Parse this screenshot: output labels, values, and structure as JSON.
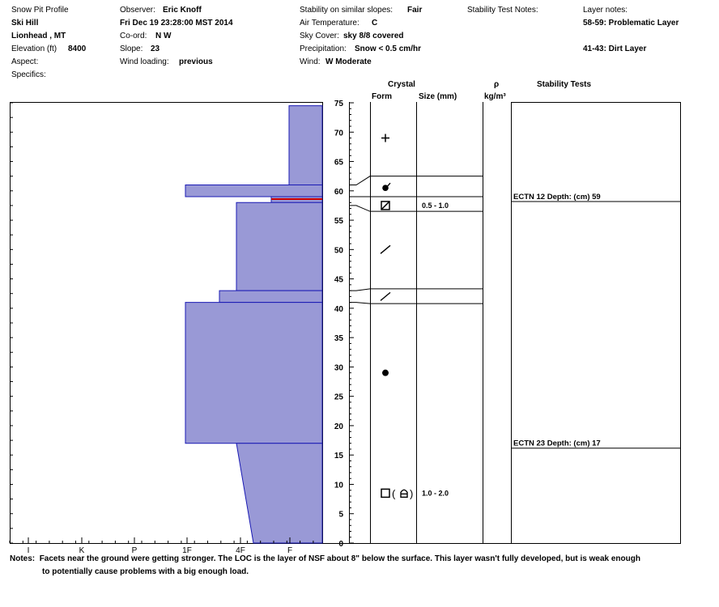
{
  "header": {
    "col1": {
      "title": "Snow Pit Profile",
      "location": "Ski Hill",
      "region": "Lionhead , MT",
      "elevation_label": "Elevation (ft)",
      "elevation_value": "8400",
      "aspect_label": "Aspect:",
      "specifics_label": "Specifics:"
    },
    "col2": {
      "observer_label": "Observer:",
      "observer_value": "Eric Knoff",
      "datetime": "Fri Dec 19 23:28:00 MST 2014",
      "coord_label": "Co-ord:",
      "coord_value": "N  W",
      "slope_label": "Slope:",
      "slope_value": "23",
      "wind_loading_label": "Wind loading:",
      "wind_loading_value": "previous"
    },
    "col3": {
      "stability_label": "Stability on similar slopes:",
      "stability_value": "Fair",
      "air_temp_label": "Air Temperature:",
      "air_temp_value": "C",
      "sky_label": "Sky Cover:",
      "sky_value": "sky 8/8 covered",
      "precip_label": "Precipitation:",
      "precip_value": "Snow < 0.5 cm/hr",
      "wind_label": "Wind:",
      "wind_value": "W Moderate"
    },
    "col4": {
      "stability_notes_label": "Stability Test Notes:"
    },
    "col5": {
      "layer_notes_label": "Layer notes:",
      "note1": "58-59: Problematic Layer",
      "note2": "41-43: Dirt Layer"
    }
  },
  "columns": {
    "crystal": "Crystal",
    "form": "Form",
    "size": "Size (mm)",
    "rho": "ρ",
    "density_unit": "kg/m³",
    "stability_tests": "Stability Tests"
  },
  "chart_data": {
    "type": "area",
    "description_axis": "hardness profile vs depth",
    "x_categories": [
      "I",
      "K",
      "P",
      "1F",
      "4F",
      "F"
    ],
    "y_ticks": [
      0,
      5,
      10,
      15,
      20,
      25,
      30,
      35,
      40,
      45,
      50,
      55,
      60,
      65,
      70,
      75
    ],
    "ylim": [
      0,
      75
    ],
    "fill_color": "#9999d6",
    "edge_color": "#1a1ab4",
    "marker_color": "#cc0000",
    "hardness_layers": [
      {
        "bottom": 61,
        "top": 74.5,
        "hardness": "F-"
      },
      {
        "bottom": 59,
        "top": 61,
        "hardness": "1F"
      },
      {
        "bottom": 58,
        "top": 59,
        "hardness": "F- (problematic layer marked)"
      },
      {
        "bottom": 43,
        "top": 58,
        "hardness": "4F"
      },
      {
        "bottom": 41,
        "top": 43,
        "hardness": "4F+"
      },
      {
        "bottom": 17,
        "top": 41,
        "hardness": "1F"
      },
      {
        "bottom": 0,
        "top": 17,
        "hardness": "4F to F (tapering)"
      }
    ],
    "crystal_layers": [
      {
        "depth": 69,
        "form": "+"
      },
      {
        "depth": 60.5,
        "form": "rounding decomposed"
      },
      {
        "depth": 57.5,
        "form": "faceted",
        "size": "0.5 - 1.0"
      },
      {
        "depth": 50,
        "form": "/"
      },
      {
        "depth": 42,
        "form": "/"
      },
      {
        "depth": 29,
        "form": "●"
      },
      {
        "depth": 8.5,
        "form": "depth hoar",
        "size": "1.0 - 2.0"
      }
    ],
    "stability_tests": [
      {
        "depth": 59,
        "label": "ECTN 12   Depth: (cm) 59"
      },
      {
        "depth": 17,
        "label": "ECTN 23   Depth: (cm) 17"
      }
    ]
  },
  "notes": {
    "label": "Notes:",
    "line1": "Facets near the ground were getting stronger. The LOC is the layer of NSF about 8\" below the surface. This layer wasn't fully developed, but is weak enough",
    "line2": "to potentially cause problems with a big enough load."
  }
}
